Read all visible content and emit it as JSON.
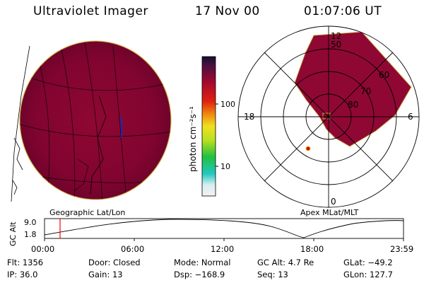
{
  "header": {
    "instrument": "Ultraviolet Imager",
    "date": "17 Nov 00",
    "time": "01:07:06 UT"
  },
  "left_panel": {
    "caption": "Geographic Lat/Lon"
  },
  "right_panel": {
    "caption": "Apex MLat/MLT",
    "lat_labels": [
      "50",
      "60",
      "70",
      "80"
    ],
    "mlt_labels": {
      "top": "12",
      "left": "18",
      "right": "6",
      "bottom": "0"
    }
  },
  "colorbar": {
    "unit": "photon cm⁻²s⁻¹",
    "ticks": [
      "100",
      "10"
    ],
    "scale": "log"
  },
  "altitude": {
    "ylabel": "GC Alt",
    "y_ticks": [
      "9.0",
      "1.8"
    ],
    "x_ticks": [
      "00:00",
      "06:00",
      "12:00",
      "18:00",
      "23:59"
    ],
    "marker_color": "#ff0000"
  },
  "info": {
    "flt": "Flt: 1356",
    "ip": "IP: 36.0",
    "door": "Door: Closed",
    "gain": "Gain: 13",
    "mode": "Mode: Normal",
    "dsp": "Dsp: −168.9",
    "gc_alt": "GC Alt: 4.7 Re",
    "seq": "Seq: 13",
    "glat": "GLat: −49.2",
    "glon": "GLon: 127.7"
  }
}
